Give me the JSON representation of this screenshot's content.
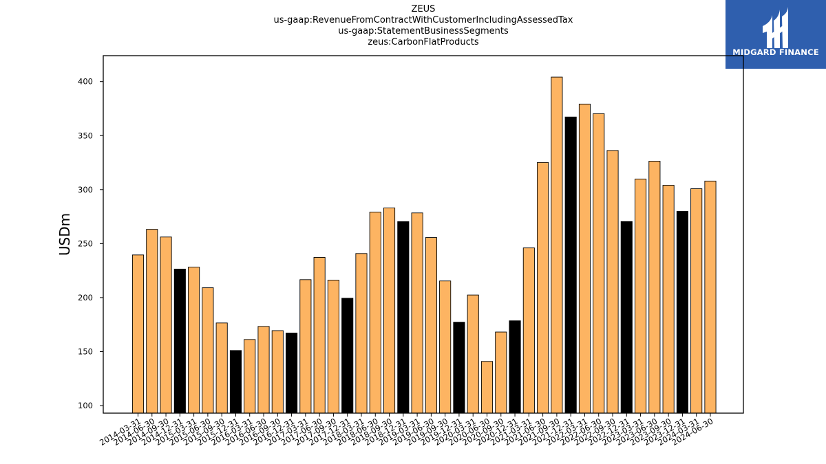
{
  "titles": {
    "line1": "ZEUS",
    "line2": "us-gaap:RevenueFromContractWithCustomerIncludingAssessedTax",
    "line3": "us-gaap:StatementBusinessSegments",
    "line4": "zeus:CarbonFlatProducts"
  },
  "logo": {
    "text": "MIDGARD FINANCE",
    "color": "#2f5fae"
  },
  "chart_data": {
    "type": "bar",
    "ylabel": "USDm",
    "ylim": [
      93,
      424
    ],
    "yticks": [
      100,
      150,
      200,
      250,
      300,
      350,
      400
    ],
    "colors": {
      "quarter": "#fdb462",
      "year_end": "#000000",
      "edge": "#000000"
    },
    "categories": [
      "2014-03-31",
      "2014-06-30",
      "2014-09-30",
      "2014-12-31",
      "2015-03-31",
      "2015-06-30",
      "2015-09-30",
      "2015-12-31",
      "2016-03-31",
      "2016-06-30",
      "2016-09-30",
      "2016-12-31",
      "2017-03-31",
      "2017-06-30",
      "2017-09-30",
      "2017-12-31",
      "2018-03-31",
      "2018-06-30",
      "2018-09-30",
      "2018-12-31",
      "2019-03-31",
      "2019-06-30",
      "2019-09-30",
      "2019-12-31",
      "2020-03-31",
      "2020-06-30",
      "2020-09-30",
      "2020-12-31",
      "2021-03-31",
      "2021-06-30",
      "2021-09-30",
      "2021-12-31",
      "2022-03-31",
      "2022-06-30",
      "2022-09-30",
      "2022-12-31",
      "2023-03-31",
      "2023-06-30",
      "2023-09-30",
      "2023-12-31",
      "2024-03-31",
      "2024-06-30"
    ],
    "values": [
      239.5,
      263.2,
      256.1,
      226.4,
      228.2,
      209.1,
      176.5,
      151.0,
      161.2,
      173.3,
      169.4,
      167.2,
      216.6,
      237.2,
      216.2,
      199.4,
      240.8,
      279.2,
      283.0,
      270.3,
      278.4,
      255.6,
      215.4,
      177.2,
      202.4,
      140.9,
      168.1,
      178.5,
      246.0,
      325.1,
      404.2,
      367.2,
      379.2,
      370.3,
      336.2,
      270.4,
      309.8,
      326.3,
      304.0,
      279.8,
      300.8,
      307.9
    ],
    "year_end": [
      false,
      false,
      false,
      true,
      false,
      false,
      false,
      true,
      false,
      false,
      false,
      true,
      false,
      false,
      false,
      true,
      false,
      false,
      false,
      true,
      false,
      false,
      false,
      true,
      false,
      false,
      false,
      true,
      false,
      false,
      false,
      true,
      false,
      false,
      false,
      true,
      false,
      false,
      false,
      true,
      false,
      false
    ]
  }
}
